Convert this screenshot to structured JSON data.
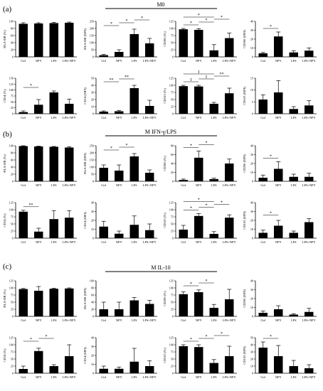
{
  "figure": {
    "sections": [
      {
        "panel_label": "(a)",
        "title": "M0"
      },
      {
        "panel_label": "(b)",
        "title": "M IFN-γ/LPS"
      },
      {
        "panel_label": "(c)",
        "title": "M IL-10"
      }
    ]
  },
  "chart_data": [
    {
      "type": "bar",
      "section": "(a)",
      "ylabel": "HLA-DR (%)",
      "categories": [
        "Ctrl",
        "NPY",
        "LPS",
        "LPS+NPY"
      ],
      "values": [
        93,
        94,
        95,
        96
      ],
      "errors": [
        3,
        2,
        2,
        2
      ],
      "ylim": [
        0,
        100
      ],
      "yticks": [
        0,
        20,
        40,
        60,
        80,
        100
      ],
      "significance": []
    },
    {
      "type": "bar",
      "section": "(a)",
      "ylabel": "HLA-DR (MFI)",
      "categories": [
        "Ctrl",
        "NPY",
        "LPS",
        "LPS+NPY"
      ],
      "values": [
        12,
        35,
        160,
        95
      ],
      "errors": [
        5,
        15,
        35,
        35
      ],
      "ylim": [
        0,
        250
      ],
      "yticks": [
        0,
        50,
        100,
        150,
        200,
        250
      ],
      "significance": [
        "*",
        "*",
        "*"
      ]
    },
    {
      "type": "bar",
      "section": "(a)",
      "ylabel": "CD206 (%)",
      "categories": [
        "Ctrl",
        "NPY",
        "LPS",
        "LPS+NPY"
      ],
      "values": [
        97,
        95,
        23,
        66
      ],
      "errors": [
        3,
        4,
        20,
        18
      ],
      "ylim": [
        0,
        125
      ],
      "yticks": [
        0,
        25,
        50,
        75,
        100,
        125
      ],
      "significance": [
        "*",
        "*",
        "*",
        "*"
      ]
    },
    {
      "type": "bar",
      "section": "(a)",
      "ylabel": "CD206 (MFI)",
      "categories": [
        "Ctrl",
        "NPY",
        "LPS",
        "LPS+NPY"
      ],
      "values": [
        4,
        23,
        5,
        7
      ],
      "errors": [
        1,
        5,
        2,
        3
      ],
      "ylim": [
        0,
        40
      ],
      "yticks": [
        0,
        10,
        20,
        30,
        40
      ],
      "significance": [
        "*"
      ]
    },
    {
      "type": "bar",
      "section": "(a)",
      "ylabel": "CD14 (%)",
      "categories": [
        "Ctrl",
        "NPY",
        "LPS",
        "LPS+NPY"
      ],
      "values": [
        7,
        38,
        90,
        42
      ],
      "errors": [
        5,
        22,
        6,
        20
      ],
      "ylim": [
        0,
        150
      ],
      "yticks": [
        0,
        25,
        50,
        75,
        100,
        125,
        150
      ],
      "significance": [
        "*"
      ]
    },
    {
      "type": "bar",
      "section": "(a)",
      "ylabel": "CD14 (MFI)",
      "categories": [
        "Ctrl",
        "NPY",
        "LPS",
        "LPS+NPY"
      ],
      "values": [
        3,
        3.5,
        36,
        11
      ],
      "errors": [
        1,
        1,
        4,
        8
      ],
      "ylim": [
        0,
        50
      ],
      "yticks": [
        0,
        10,
        20,
        30,
        40,
        50
      ],
      "significance": [
        "**",
        "**"
      ]
    },
    {
      "type": "bar",
      "section": "(a)",
      "ylabel": "CD163 (%)",
      "categories": [
        "Ctrl",
        "NPY",
        "LPS",
        "LPS+NPY"
      ],
      "values": [
        97,
        96,
        35,
        72
      ],
      "errors": [
        3,
        4,
        5,
        18
      ],
      "ylim": [
        0,
        125
      ],
      "yticks": [
        0,
        25,
        50,
        75,
        100,
        125
      ],
      "significance": [
        "I",
        "I",
        "**",
        "I"
      ]
    },
    {
      "type": "bar",
      "section": "(a)",
      "ylabel": "CD163 (MFI)",
      "categories": [
        "Ctrl",
        "NPY",
        "LPS",
        "LPS+NPY"
      ],
      "values": [
        6,
        9,
        2,
        3.5
      ],
      "errors": [
        2,
        5,
        1,
        2
      ],
      "ylim": [
        0,
        15
      ],
      "yticks": [
        0,
        5,
        10,
        15
      ],
      "significance": []
    },
    {
      "type": "bar",
      "section": "(b)",
      "ylabel": "HLA-DR (%)",
      "categories": [
        "Ctrl",
        "NPY",
        "LPS",
        "LPS+NPY"
      ],
      "values": [
        99,
        98,
        97,
        95
      ],
      "errors": [
        1,
        1,
        1,
        2
      ],
      "ylim": [
        0,
        100
      ],
      "yticks": [
        0,
        20,
        40,
        60,
        80,
        100
      ],
      "significance": []
    },
    {
      "type": "bar",
      "section": "(b)",
      "ylabel": "HLA-DR (MFI)",
      "categories": [
        "Ctrl",
        "NPY",
        "LPS",
        "LPS+NPY"
      ],
      "values": [
        95,
        75,
        175,
        60
      ],
      "errors": [
        20,
        40,
        20,
        20
      ],
      "ylim": [
        0,
        250
      ],
      "yticks": [
        0,
        50,
        100,
        150,
        200,
        250
      ],
      "significance": [
        "*",
        "*"
      ]
    },
    {
      "type": "bar",
      "section": "(b)",
      "ylabel": "CD206 (%)",
      "categories": [
        "Ctrl",
        "NPY",
        "LPS",
        "LPS+NPY"
      ],
      "values": [
        3,
        53,
        5,
        40
      ],
      "errors": [
        2,
        15,
        2,
        10
      ],
      "ylim": [
        0,
        80
      ],
      "yticks": [
        0,
        20,
        40,
        60,
        80
      ],
      "significance": [
        "*",
        "*"
      ]
    },
    {
      "type": "bar",
      "section": "(b)",
      "ylabel": "CD206 (MFI)",
      "categories": [
        "Ctrl",
        "NPY",
        "LPS",
        "LPS+NPY"
      ],
      "values": [
        4,
        14,
        5,
        5
      ],
      "errors": [
        3,
        8,
        3,
        4
      ],
      "ylim": [
        0,
        40
      ],
      "yticks": [
        0,
        10,
        20,
        30,
        40
      ],
      "significance": [
        "*"
      ]
    },
    {
      "type": "bar",
      "section": "(b)",
      "ylabel": "CD14 (%)",
      "categories": [
        "Ctrl",
        "NPY",
        "LPS",
        "LPS+NPY"
      ],
      "values": [
        93,
        23,
        67,
        72
      ],
      "errors": [
        5,
        12,
        30,
        25
      ],
      "ylim": [
        0,
        125
      ],
      "yticks": [
        0,
        25,
        50,
        75,
        100,
        125
      ],
      "significance": [
        "**"
      ]
    },
    {
      "type": "bar",
      "section": "(b)",
      "ylabel": "CD14 (MFI)",
      "categories": [
        "Ctrl",
        "NPY",
        "LPS",
        "LPS+NPY"
      ],
      "values": [
        13,
        5,
        15,
        9
      ],
      "errors": [
        6,
        3,
        10,
        7
      ],
      "ylim": [
        0,
        40
      ],
      "yticks": [
        0,
        10,
        20,
        30,
        40
      ],
      "significance": []
    },
    {
      "type": "bar",
      "section": "(b)",
      "ylabel": "CD163 (%)",
      "categories": [
        "Ctrl",
        "NPY",
        "LPS",
        "LPS+NPY"
      ],
      "values": [
        30,
        78,
        15,
        72
      ],
      "errors": [
        15,
        8,
        8,
        10
      ],
      "ylim": [
        0,
        125
      ],
      "yticks": [
        0,
        25,
        50,
        75,
        100,
        125
      ],
      "significance": [
        "*",
        "*",
        "*",
        "*"
      ]
    },
    {
      "type": "bar",
      "section": "(b)",
      "ylabel": "CD163 (MFI)",
      "categories": [
        "Ctrl",
        "NPY",
        "LPS",
        "LPS+NPY"
      ],
      "values": [
        6,
        14,
        6,
        18
      ],
      "errors": [
        3,
        6,
        2,
        4
      ],
      "ylim": [
        0,
        40
      ],
      "yticks": [
        0,
        10,
        20,
        30,
        40
      ],
      "significance": [
        "*"
      ]
    },
    {
      "type": "bar",
      "section": "(c)",
      "ylabel": "HLA-DR (%)",
      "categories": [
        "Ctrl",
        "NPY",
        "LPS",
        "LPS+NPY"
      ],
      "values": [
        96,
        90,
        97,
        98
      ],
      "errors": [
        2,
        15,
        2,
        2
      ],
      "ylim": [
        0,
        125
      ],
      "yticks": [
        0,
        25,
        50,
        75,
        100,
        125
      ],
      "significance": []
    },
    {
      "type": "bar",
      "section": "(c)",
      "ylabel": "HLA-DR (MFI)",
      "categories": [
        "Ctrl",
        "NPY",
        "LPS",
        "LPS+NPY"
      ],
      "values": [
        20,
        20,
        45,
        35
      ],
      "errors": [
        20,
        20,
        8,
        10
      ],
      "ylim": [
        0,
        100
      ],
      "yticks": [
        0,
        20,
        40,
        60,
        80,
        100
      ],
      "significance": []
    },
    {
      "type": "bar",
      "section": "(c)",
      "ylabel": "CD206 (%)",
      "categories": [
        "Ctrl",
        "NPY",
        "LPS",
        "LPS+NPY"
      ],
      "values": [
        78,
        85,
        30,
        60
      ],
      "errors": [
        8,
        8,
        12,
        35
      ],
      "ylim": [
        0,
        125
      ],
      "yticks": [
        0,
        25,
        50,
        75,
        100,
        125
      ],
      "significance": [
        "*",
        "*"
      ]
    },
    {
      "type": "bar",
      "section": "(c)",
      "ylabel": "CD206 (MFI)",
      "categories": [
        "Ctrl",
        "NPY",
        "LPS",
        "LPS+NPY"
      ],
      "values": [
        4,
        8,
        2,
        5
      ],
      "errors": [
        2,
        4,
        1,
        4
      ],
      "ylim": [
        0,
        40
      ],
      "yticks": [
        0,
        10,
        20,
        30,
        40
      ],
      "significance": []
    },
    {
      "type": "bar",
      "section": "(c)",
      "ylabel": "CD14 (%)",
      "categories": [
        "Ctrl",
        "NPY",
        "LPS",
        "LPS+NPY"
      ],
      "values": [
        15,
        78,
        25,
        60
      ],
      "errors": [
        10,
        10,
        5,
        40
      ],
      "ylim": [
        0,
        125
      ],
      "yticks": [
        0,
        25,
        50,
        75,
        100,
        125
      ],
      "significance": [
        "*",
        "*"
      ]
    },
    {
      "type": "bar",
      "section": "(c)",
      "ylabel": "CD14 (MFI)",
      "categories": [
        "Ctrl",
        "NPY",
        "LPS",
        "LPS+NPY"
      ],
      "values": [
        5,
        5,
        13,
        8
      ],
      "errors": [
        3,
        2,
        15,
        6
      ],
      "ylim": [
        0,
        40
      ],
      "yticks": [
        0,
        10,
        20,
        30,
        40
      ],
      "significance": []
    },
    {
      "type": "bar",
      "section": "(c)",
      "ylabel": "CD163 (%)",
      "categories": [
        "Ctrl",
        "NPY",
        "LPS",
        "LPS+NPY"
      ],
      "values": [
        95,
        92,
        36,
        60
      ],
      "errors": [
        5,
        8,
        12,
        35
      ],
      "ylim": [
        0,
        125
      ],
      "yticks": [
        0,
        25,
        50,
        75,
        100,
        125
      ],
      "significance": [
        "*",
        "*",
        "*"
      ]
    },
    {
      "type": "bar",
      "section": "(c)",
      "ylabel": "CD163 (MFI)",
      "categories": [
        "Ctrl",
        "NPY",
        "LPS",
        "LPS+NPY"
      ],
      "values": [
        36,
        24,
        10,
        7
      ],
      "errors": [
        8,
        15,
        8,
        5
      ],
      "ylim": [
        0,
        50
      ],
      "yticks": [
        0,
        10,
        20,
        30,
        40,
        50
      ],
      "significance": [
        "*"
      ]
    }
  ]
}
